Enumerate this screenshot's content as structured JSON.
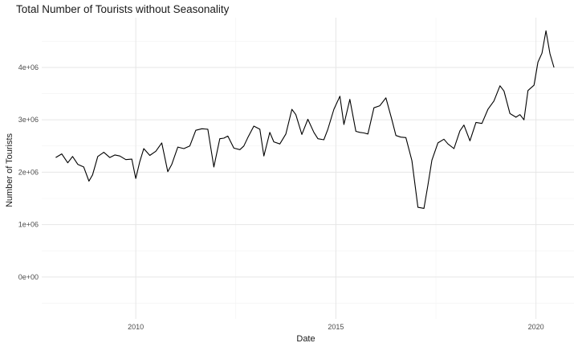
{
  "chart_data": {
    "type": "line",
    "title": "Total Number of Tourists without Seasonality",
    "xlabel": "Date",
    "ylabel": "Number of Tourists",
    "x_ticks": [
      {
        "value": 2010,
        "label": "2010"
      },
      {
        "value": 2015,
        "label": "2015"
      },
      {
        "value": 2020,
        "label": "2020"
      }
    ],
    "y_ticks": [
      {
        "value": 0,
        "label": "0e+00"
      },
      {
        "value": 1000000,
        "label": "1e+06"
      },
      {
        "value": 2000000,
        "label": "2e+06"
      },
      {
        "value": 3000000,
        "label": "3e+06"
      },
      {
        "value": 4000000,
        "label": "4e+06"
      }
    ],
    "xlim": [
      2007.65,
      2020.95
    ],
    "ylim": [
      -800000,
      4950000
    ],
    "grid": true,
    "series": [
      {
        "x": [
          2008.0,
          2008.15,
          2008.3,
          2008.42,
          2008.55,
          2008.7,
          2008.83,
          2008.92,
          2009.05,
          2009.2,
          2009.35,
          2009.48,
          2009.6,
          2009.75,
          2009.9,
          2010.0,
          2010.1,
          2010.2,
          2010.35,
          2010.5,
          2010.65,
          2010.8,
          2010.9,
          2011.05,
          2011.2,
          2011.35,
          2011.5,
          2011.65,
          2011.8,
          2011.95,
          2012.1,
          2012.2,
          2012.3,
          2012.45,
          2012.6,
          2012.7,
          2012.8,
          2012.95,
          2013.1,
          2013.2,
          2013.35,
          2013.45,
          2013.6,
          2013.75,
          2013.9,
          2014.0,
          2014.15,
          2014.3,
          2014.45,
          2014.55,
          2014.7,
          2014.8,
          2014.95,
          2015.1,
          2015.2,
          2015.35,
          2015.5,
          2015.6,
          2015.7,
          2015.8,
          2015.95,
          2016.1,
          2016.25,
          2016.4,
          2016.5,
          2016.62,
          2016.75,
          2016.9,
          2017.05,
          2017.2,
          2017.3,
          2017.4,
          2017.55,
          2017.7,
          2017.8,
          2017.95,
          2018.1,
          2018.2,
          2018.35,
          2018.5,
          2018.65,
          2018.8,
          2018.95,
          2019.1,
          2019.2,
          2019.35,
          2019.5,
          2019.6,
          2019.7,
          2019.8,
          2019.95,
          2020.05,
          2020.15,
          2020.25,
          2020.35,
          2020.45
        ],
        "y": [
          2280000,
          2350000,
          2180000,
          2300000,
          2150000,
          2100000,
          1830000,
          1950000,
          2300000,
          2380000,
          2280000,
          2330000,
          2310000,
          2240000,
          2250000,
          1880000,
          2200000,
          2450000,
          2320000,
          2400000,
          2560000,
          2010000,
          2150000,
          2480000,
          2450000,
          2500000,
          2800000,
          2830000,
          2820000,
          2100000,
          2640000,
          2650000,
          2690000,
          2460000,
          2430000,
          2500000,
          2660000,
          2880000,
          2820000,
          2310000,
          2760000,
          2580000,
          2540000,
          2730000,
          3200000,
          3100000,
          2720000,
          3010000,
          2760000,
          2640000,
          2620000,
          2820000,
          3200000,
          3450000,
          2910000,
          3390000,
          2780000,
          2760000,
          2750000,
          2730000,
          3230000,
          3270000,
          3420000,
          3000000,
          2700000,
          2670000,
          2660000,
          2220000,
          1330000,
          1310000,
          1750000,
          2230000,
          2560000,
          2630000,
          2540000,
          2450000,
          2790000,
          2900000,
          2600000,
          2950000,
          2930000,
          3200000,
          3360000,
          3650000,
          3550000,
          3120000,
          3050000,
          3100000,
          3000000,
          3560000,
          3660000,
          4100000,
          4270000,
          4700000,
          4260000,
          4000000
        ]
      }
    ]
  }
}
